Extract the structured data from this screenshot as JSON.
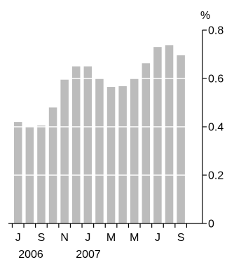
{
  "chart_data": {
    "type": "bar",
    "unit_label": "%",
    "x_tick_labels": [
      "J",
      "S",
      "N",
      "J",
      "M",
      "M",
      "J",
      "S"
    ],
    "year_labels": [
      "2006",
      "2007"
    ],
    "values": [
      0.42,
      0.4,
      0.405,
      0.48,
      0.595,
      0.65,
      0.65,
      0.6,
      0.565,
      0.568,
      0.6,
      0.663,
      0.73,
      0.738,
      0.696
    ],
    "ylim": [
      0,
      0.8
    ],
    "y_ticks": [
      "0",
      "0.2",
      "0.4",
      "0.6",
      "0.8"
    ],
    "y_tick_values": [
      0,
      0.2,
      0.4,
      0.6,
      0.8
    ],
    "grid": true,
    "colors": {
      "bar": "#bcbcbc",
      "grid": "#ffffff",
      "axis": "#000000",
      "text": "#000000"
    }
  }
}
